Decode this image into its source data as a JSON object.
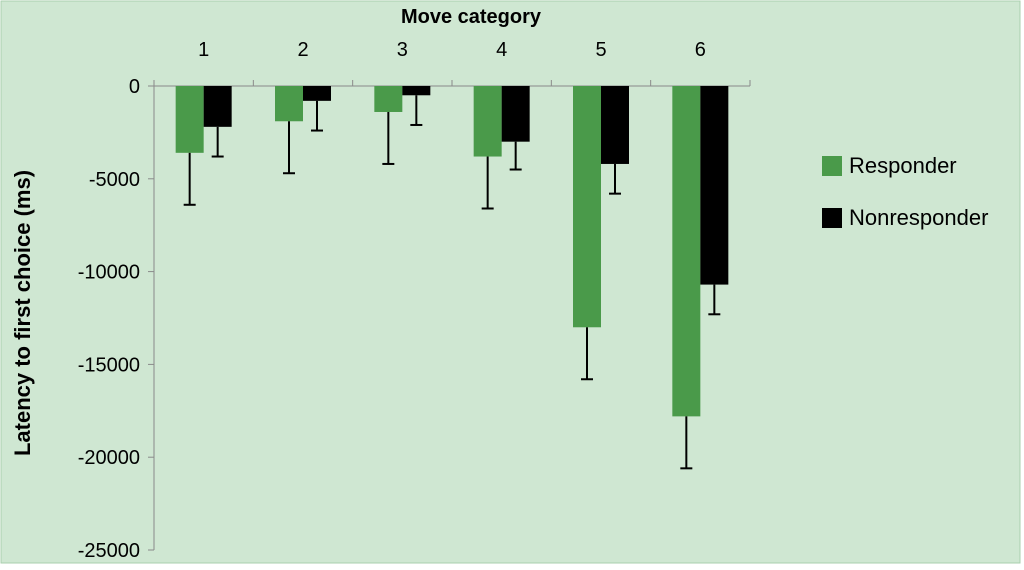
{
  "chart_data": {
    "type": "bar",
    "title": "",
    "xlabel": "Move category",
    "ylabel": "Latency to first choice (ms)",
    "categories": [
      "1",
      "2",
      "3",
      "4",
      "5",
      "6"
    ],
    "ylim": [
      -25000,
      0
    ],
    "yticks": [
      0,
      -5000,
      -10000,
      -15000,
      -20000,
      -25000
    ],
    "ytick_labels": [
      "0",
      "-5000",
      "-10000",
      "-15000",
      "-20000",
      "-25000"
    ],
    "x_axis_position": "top",
    "grid": false,
    "legend_position": "right",
    "error_bars": "one-sided (below bar)",
    "series": [
      {
        "name": "Responder",
        "color": "#4a9a4a",
        "values": [
          -3600,
          -1900,
          -1400,
          -3800,
          -13000,
          -17800
        ],
        "errors": [
          2800,
          2800,
          2800,
          2800,
          2800,
          2800
        ]
      },
      {
        "name": "Nonresponder",
        "color": "#000000",
        "values": [
          -2200,
          -800,
          -500,
          -3000,
          -4200,
          -10700
        ],
        "errors": [
          1600,
          1600,
          1600,
          1500,
          1600,
          1600
        ]
      }
    ],
    "background_color": "#cfe7d2",
    "border_color": "#a9cfae"
  }
}
